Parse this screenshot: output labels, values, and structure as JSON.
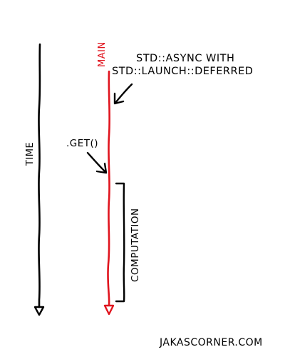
{
  "diagram": {
    "time_label": "TIME",
    "main_label": "MAIN",
    "caption_line1": "STD::ASYNC WITH",
    "caption_line2": "STD::LAUNCH::DEFERRED",
    "get_label": ".GET()",
    "computation_label": "COMPUTATION",
    "footer": "JAKASCORNER.COM"
  },
  "colors": {
    "ink": "#000000",
    "main_thread": "#e0141e",
    "background": "#ffffff"
  }
}
